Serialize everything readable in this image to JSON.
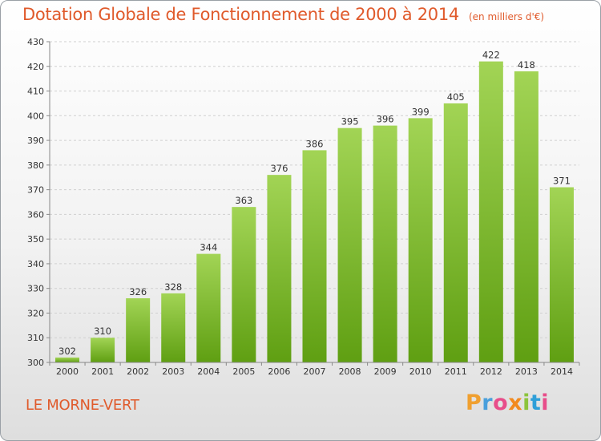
{
  "header": {
    "title": "Dotation Globale de Fonctionnement de 2000 à 2014",
    "subtitle": "(en milliers d'€)"
  },
  "footer": {
    "commune": "LE MORNE-VERT",
    "logo_letters": [
      "P",
      "r",
      "o",
      "x",
      "i",
      "t",
      "i"
    ],
    "logo_colors": [
      "#f0a030",
      "#4aa0dc",
      "#e84d8a",
      "#f28a1e",
      "#8cc43c",
      "#2f9fd8",
      "#e84d8a"
    ]
  },
  "colors": {
    "bar_light": "#a2d455",
    "bar_dark": "#5f9f12",
    "accent": "#e05a2b"
  },
  "chart_data": {
    "type": "bar",
    "title": "Dotation Globale de Fonctionnement de 2000 à 2014",
    "subtitle": "(en milliers d'€)",
    "categories": [
      "2000",
      "2001",
      "2002",
      "2003",
      "2004",
      "2005",
      "2006",
      "2007",
      "2008",
      "2009",
      "2010",
      "2011",
      "2012",
      "2013",
      "2014"
    ],
    "values": [
      302,
      310,
      326,
      328,
      344,
      363,
      376,
      386,
      395,
      396,
      399,
      405,
      422,
      418,
      371
    ],
    "ylim": [
      300,
      430
    ],
    "yticks": [
      300,
      310,
      320,
      330,
      340,
      350,
      360,
      370,
      380,
      390,
      400,
      410,
      420,
      430
    ],
    "grid": true,
    "xlabel": "",
    "ylabel": ""
  }
}
